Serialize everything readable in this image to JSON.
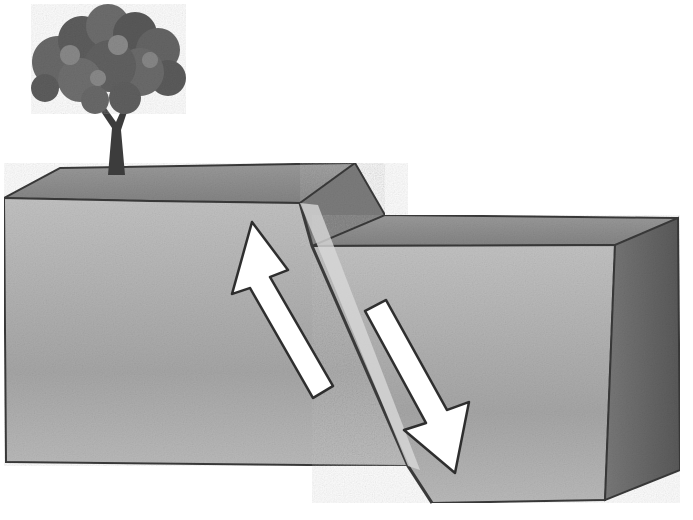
{
  "diagram": {
    "subject": "fault-block-cross-section",
    "motion": {
      "left_block": "up",
      "right_block": "down"
    },
    "colors": {
      "background": "#ffffff",
      "ground_surface": "#8f8f8f",
      "block_front": "#b9b9b9",
      "block_side_dark": "#6a6a6a",
      "fault_face": "#9a9a9a",
      "outline": "#3a3a3a",
      "arrow_fill": "#ffffff",
      "tree_foliage": "#5e5e5e",
      "tree_trunk": "#3c3c3c"
    }
  }
}
